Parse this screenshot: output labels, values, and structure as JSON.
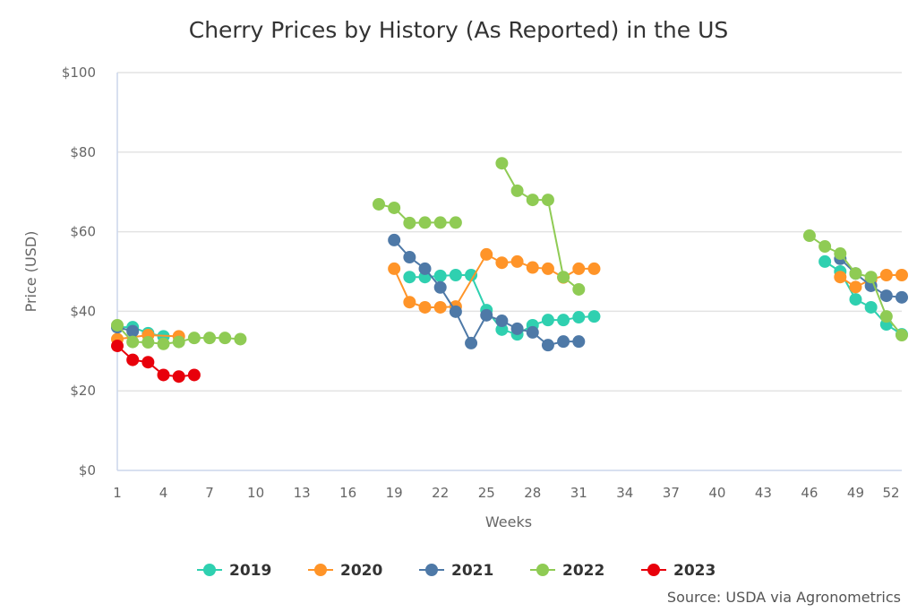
{
  "chart_data": {
    "type": "line",
    "title": "Cherry Prices by History (As Reported) in the US",
    "xlabel": "Weeks",
    "ylabel": "Price (USD)",
    "xlim": [
      1,
      52
    ],
    "ylim": [
      0,
      100
    ],
    "x_ticks": [
      1,
      4,
      7,
      10,
      13,
      16,
      19,
      22,
      25,
      28,
      31,
      34,
      37,
      40,
      43,
      46,
      49,
      52
    ],
    "y_ticks": [
      0,
      20,
      40,
      60,
      80,
      100
    ],
    "y_tick_labels": [
      "$0",
      "$20",
      "$40",
      "$60",
      "$80",
      "$100"
    ],
    "grid": "horizontal",
    "legend_position": "bottom",
    "source": "Source: USDA via Agronometrics",
    "series": [
      {
        "name": "2019",
        "color": "#2fd0b0",
        "points": [
          [
            1,
            36
          ],
          [
            2,
            36
          ],
          [
            3,
            34.5
          ],
          [
            4,
            33.7
          ],
          [
            20,
            48.6
          ],
          [
            21,
            48.6
          ],
          [
            22,
            48.9
          ],
          [
            23,
            49.1
          ],
          [
            24,
            49.1
          ],
          [
            25,
            40.3
          ],
          [
            26,
            35.4
          ],
          [
            27,
            34.2
          ],
          [
            28,
            36.5
          ],
          [
            29,
            37.8
          ],
          [
            30,
            37.8
          ],
          [
            31,
            38.5
          ],
          [
            32,
            38.7
          ],
          [
            47,
            52.5
          ],
          [
            48,
            50
          ],
          [
            49,
            43
          ],
          [
            50,
            41
          ],
          [
            51,
            36.7
          ],
          [
            52,
            34.2
          ]
        ]
      },
      {
        "name": "2020",
        "color": "#ff9428",
        "points": [
          [
            1,
            33
          ],
          [
            3,
            34
          ],
          [
            5,
            33.7
          ],
          [
            19,
            50.7
          ],
          [
            20,
            42.3
          ],
          [
            21,
            41
          ],
          [
            22,
            41
          ],
          [
            23,
            41.2
          ],
          [
            25,
            54.3
          ],
          [
            26,
            52.2
          ],
          [
            27,
            52.5
          ],
          [
            28,
            51
          ],
          [
            29,
            50.7
          ],
          [
            30,
            48.5
          ],
          [
            31,
            50.7
          ],
          [
            32,
            50.7
          ],
          [
            48,
            48.6
          ],
          [
            49,
            46.1
          ],
          [
            50,
            48
          ],
          [
            51,
            49.1
          ],
          [
            52,
            49.1
          ]
        ]
      },
      {
        "name": "2021",
        "color": "#4e79a7",
        "points": [
          [
            1,
            36
          ],
          [
            2,
            35
          ],
          [
            19,
            57.9
          ],
          [
            20,
            53.6
          ],
          [
            21,
            50.7
          ],
          [
            22,
            46
          ],
          [
            23,
            39.9
          ],
          [
            24,
            32
          ],
          [
            25,
            39
          ],
          [
            26,
            37.6
          ],
          [
            27,
            35.6
          ],
          [
            28,
            34.7
          ],
          [
            29,
            31.5
          ],
          [
            30,
            32.4
          ],
          [
            31,
            32.4
          ],
          [
            48,
            53.2
          ],
          [
            49,
            49.5
          ],
          [
            50,
            46.4
          ],
          [
            51,
            43.9
          ],
          [
            52,
            43.5
          ]
        ]
      },
      {
        "name": "2022",
        "color": "#8fcb54",
        "points": [
          [
            1,
            36.5
          ],
          [
            2,
            32.3
          ],
          [
            3,
            32.2
          ],
          [
            4,
            31.8
          ],
          [
            5,
            32.3
          ],
          [
            6,
            33.3
          ],
          [
            7,
            33.3
          ],
          [
            8,
            33.3
          ],
          [
            9,
            33
          ],
          [
            18,
            66.9
          ],
          [
            19,
            66
          ],
          [
            20,
            62.2
          ],
          [
            21,
            62.3
          ],
          [
            22,
            62.3
          ],
          [
            23,
            62.3
          ],
          [
            26,
            77.2
          ],
          [
            27,
            70.3
          ],
          [
            28,
            68
          ],
          [
            29,
            68
          ],
          [
            30,
            48.6
          ],
          [
            31,
            45.5
          ],
          [
            46,
            59
          ],
          [
            47,
            56.3
          ],
          [
            48,
            54.5
          ],
          [
            49,
            49.5
          ],
          [
            50,
            48.6
          ],
          [
            51,
            38.7
          ],
          [
            52,
            34
          ]
        ]
      },
      {
        "name": "2023",
        "color": "#e8000b",
        "points": [
          [
            1,
            31.3
          ],
          [
            2,
            27.8
          ],
          [
            3,
            27.2
          ],
          [
            4,
            24
          ],
          [
            5,
            23.6
          ],
          [
            6,
            24
          ]
        ]
      }
    ]
  }
}
